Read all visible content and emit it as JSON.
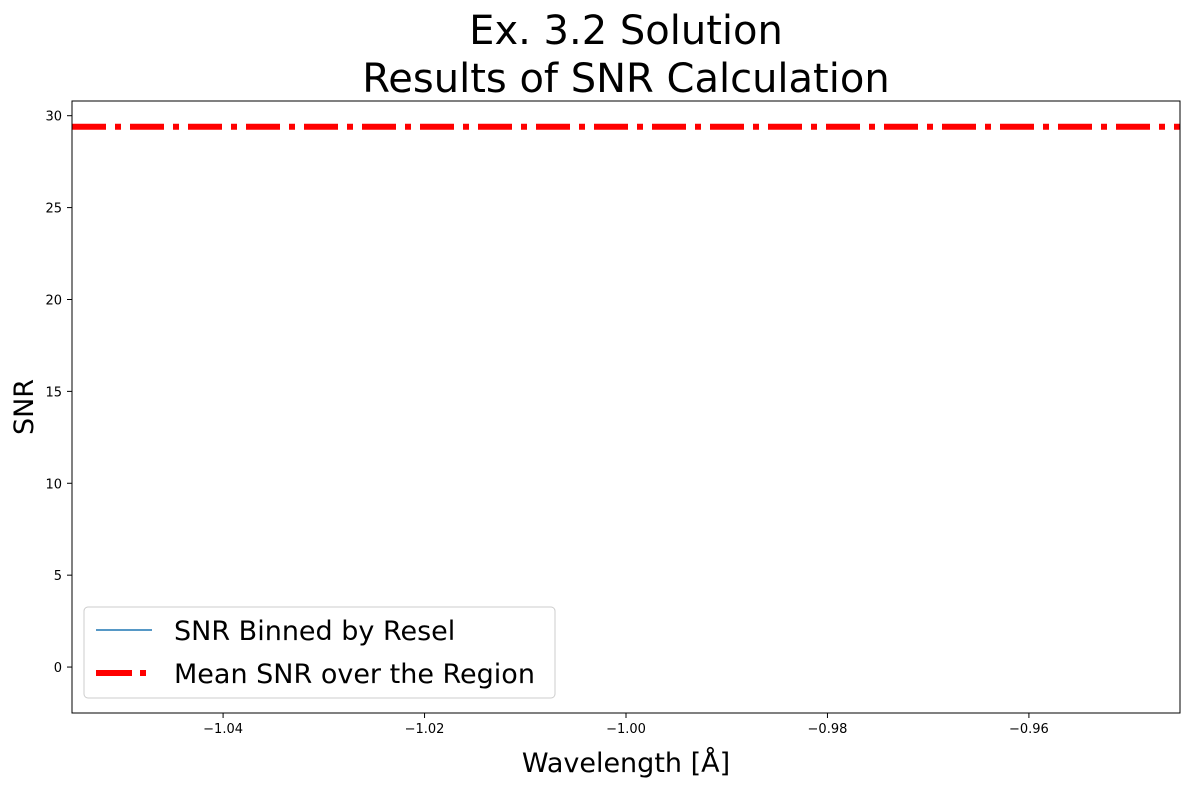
{
  "chart_data": {
    "type": "line",
    "title_lines": [
      "Ex. 3.2 Solution",
      "Results of SNR Calculation"
    ],
    "xlabel": "Wavelength [Å]",
    "ylabel": "SNR",
    "xlim": [
      -1.055,
      -0.945
    ],
    "ylim": [
      -2.5,
      30.8
    ],
    "x_ticks": [
      -1.04,
      -1.02,
      -1.0,
      -0.98,
      -0.96
    ],
    "x_tick_labels": [
      "−1.04",
      "−1.02",
      "−1.00",
      "−0.98",
      "−0.96"
    ],
    "y_ticks": [
      0,
      5,
      10,
      15,
      20,
      25,
      30
    ],
    "y_tick_labels": [
      "0",
      "5",
      "10",
      "15",
      "20",
      "25",
      "30"
    ],
    "grid": false,
    "legend_position": "lower-left",
    "series": [
      {
        "name": "SNR Binned by Resel",
        "color": "#1f77b4",
        "style": "solid",
        "x": [],
        "y": []
      },
      {
        "name": "Mean SNR over the Region",
        "color": "#ff0000",
        "style": "dashdot",
        "type": "hline",
        "y": 29.4
      }
    ]
  }
}
